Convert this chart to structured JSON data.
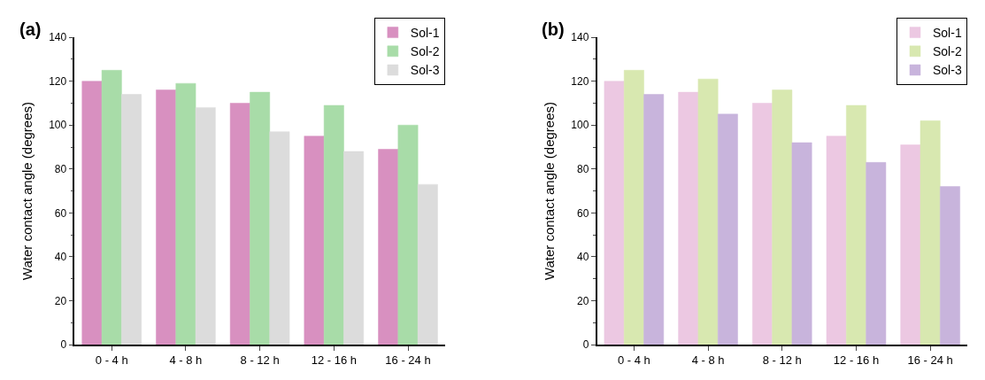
{
  "chart_data": [
    {
      "type": "bar",
      "title": "(a)",
      "ylabel": "Water contact angle (degrees)",
      "categories": [
        "0 - 4 h",
        "4 - 8 h",
        "8 - 12 h",
        "12 - 16 h",
        "16 - 24 h"
      ],
      "ylim": [
        0,
        140
      ],
      "yticks": [
        0,
        20,
        40,
        60,
        80,
        100,
        120,
        140
      ],
      "legend": "top right",
      "series": [
        {
          "name": "Sol-1",
          "color": "#d890c0",
          "values": [
            120,
            116,
            110,
            95,
            89
          ]
        },
        {
          "name": "Sol-2",
          "color": "#a8dca8",
          "values": [
            125,
            119,
            115,
            109,
            100
          ]
        },
        {
          "name": "Sol-3",
          "color": "#dcdcdc",
          "values": [
            114,
            108,
            97,
            88,
            73
          ]
        }
      ]
    },
    {
      "type": "bar",
      "title": "(b)",
      "ylabel": "Water contact angle (degrees)",
      "categories": [
        "0 - 4 h",
        "4 - 8 h",
        "8 - 12 h",
        "12 - 16 h",
        "16 - 24 h"
      ],
      "ylim": [
        0,
        140
      ],
      "yticks": [
        0,
        20,
        40,
        60,
        80,
        100,
        120,
        140
      ],
      "legend": "top right",
      "series": [
        {
          "name": "Sol-1",
          "color": "#ecc8e2",
          "values": [
            120,
            115,
            110,
            95,
            91
          ]
        },
        {
          "name": "Sol-2",
          "color": "#d8e8b0",
          "values": [
            125,
            121,
            116,
            109,
            102
          ]
        },
        {
          "name": "Sol-3",
          "color": "#c8b4dc",
          "values": [
            114,
            105,
            92,
            83,
            72
          ]
        }
      ]
    }
  ]
}
